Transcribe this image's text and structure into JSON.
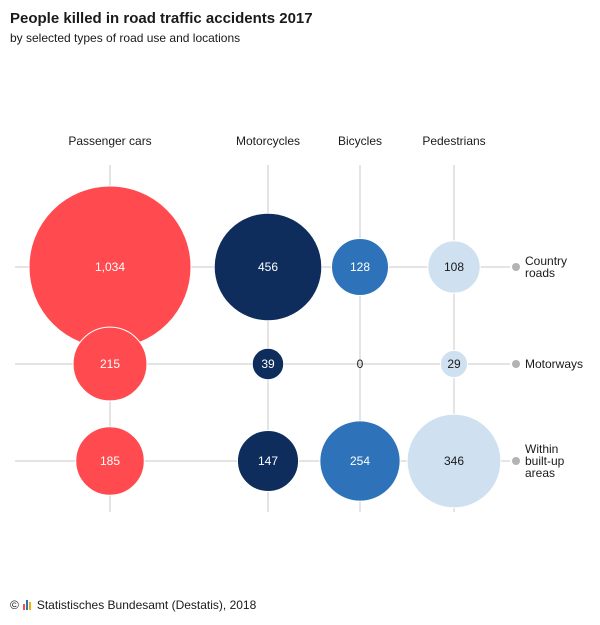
{
  "title": "People killed in road traffic accidents 2017",
  "subtitle": "by selected types of road use and locations",
  "footer": {
    "copyright": "©",
    "source": "Statistisches Bundesamt (Destatis), 2018"
  },
  "chart_data": {
    "type": "bubble-matrix",
    "columns": [
      "Passenger cars",
      "Motorcycles",
      "Bicycles",
      "Pedestrians"
    ],
    "rows": [
      {
        "label_lines": [
          "Country",
          "roads"
        ]
      },
      {
        "label_lines": [
          "Motorways"
        ]
      },
      {
        "label_lines": [
          "Within",
          "built-up",
          "areas"
        ]
      }
    ],
    "values": [
      [
        1034,
        456,
        128,
        108
      ],
      [
        215,
        39,
        0,
        29
      ],
      [
        185,
        147,
        254,
        346
      ]
    ],
    "value_labels": [
      [
        "1,034",
        "456",
        "128",
        "108"
      ],
      [
        "215",
        "39",
        "0",
        "29"
      ],
      [
        "185",
        "147",
        "254",
        "346"
      ]
    ],
    "column_colors": [
      "#ff4b4f",
      "#0e2d5c",
      "#2e73ba",
      "#cfe0f0"
    ],
    "label_colors": [
      "#ffffff",
      "#ffffff",
      "#ffffff",
      "#1a1a1a"
    ],
    "grid_color": "#c8c8c8",
    "marker_color": "#b3b3b3"
  }
}
